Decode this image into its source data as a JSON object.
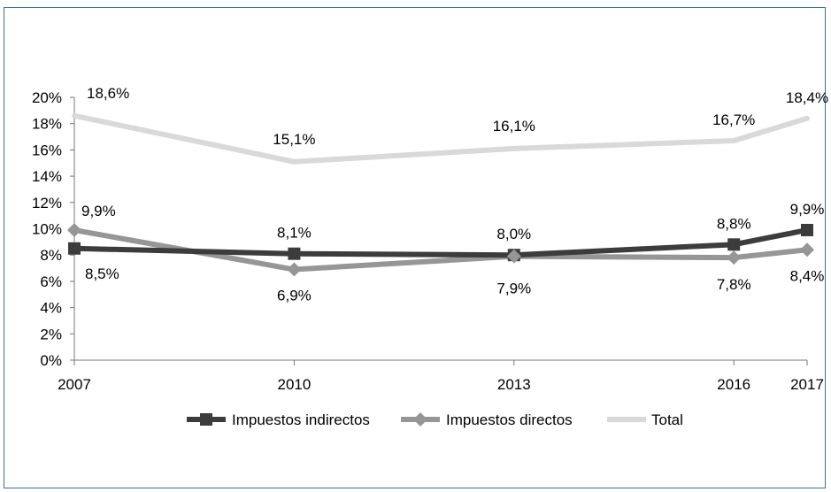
{
  "chart_data": {
    "type": "line",
    "title": "",
    "xlabel": "",
    "ylabel": "",
    "categories": [
      "2007",
      "2010",
      "2013",
      "2016",
      "2017"
    ],
    "ylim": [
      0,
      20
    ],
    "yticks": [
      "0%",
      "2%",
      "4%",
      "6%",
      "8%",
      "10%",
      "12%",
      "14%",
      "16%",
      "18%",
      "20%"
    ],
    "legend_position": "bottom",
    "series": [
      {
        "name": "Impuestos indirectos",
        "values": [
          8.5,
          8.1,
          8.0,
          8.8,
          9.9
        ],
        "labels": [
          "8,5%",
          "8,1%",
          "8,0%",
          "8,8%",
          "9,9%"
        ],
        "color": "#3c3c3c",
        "marker": "square"
      },
      {
        "name": "Impuestos directos",
        "values": [
          9.9,
          6.9,
          7.9,
          7.8,
          8.4
        ],
        "labels": [
          "9,9%",
          "6,9%",
          "7,9%",
          "7,8%",
          "8,4%"
        ],
        "color": "#969696",
        "marker": "diamond"
      },
      {
        "name": "Total",
        "values": [
          18.6,
          15.1,
          16.1,
          16.7,
          18.4
        ],
        "labels": [
          "18,6%",
          "15,1%",
          "16,1%",
          "16,7%",
          "18,4%"
        ],
        "color": "#d9d9d9",
        "marker": "none"
      }
    ]
  }
}
